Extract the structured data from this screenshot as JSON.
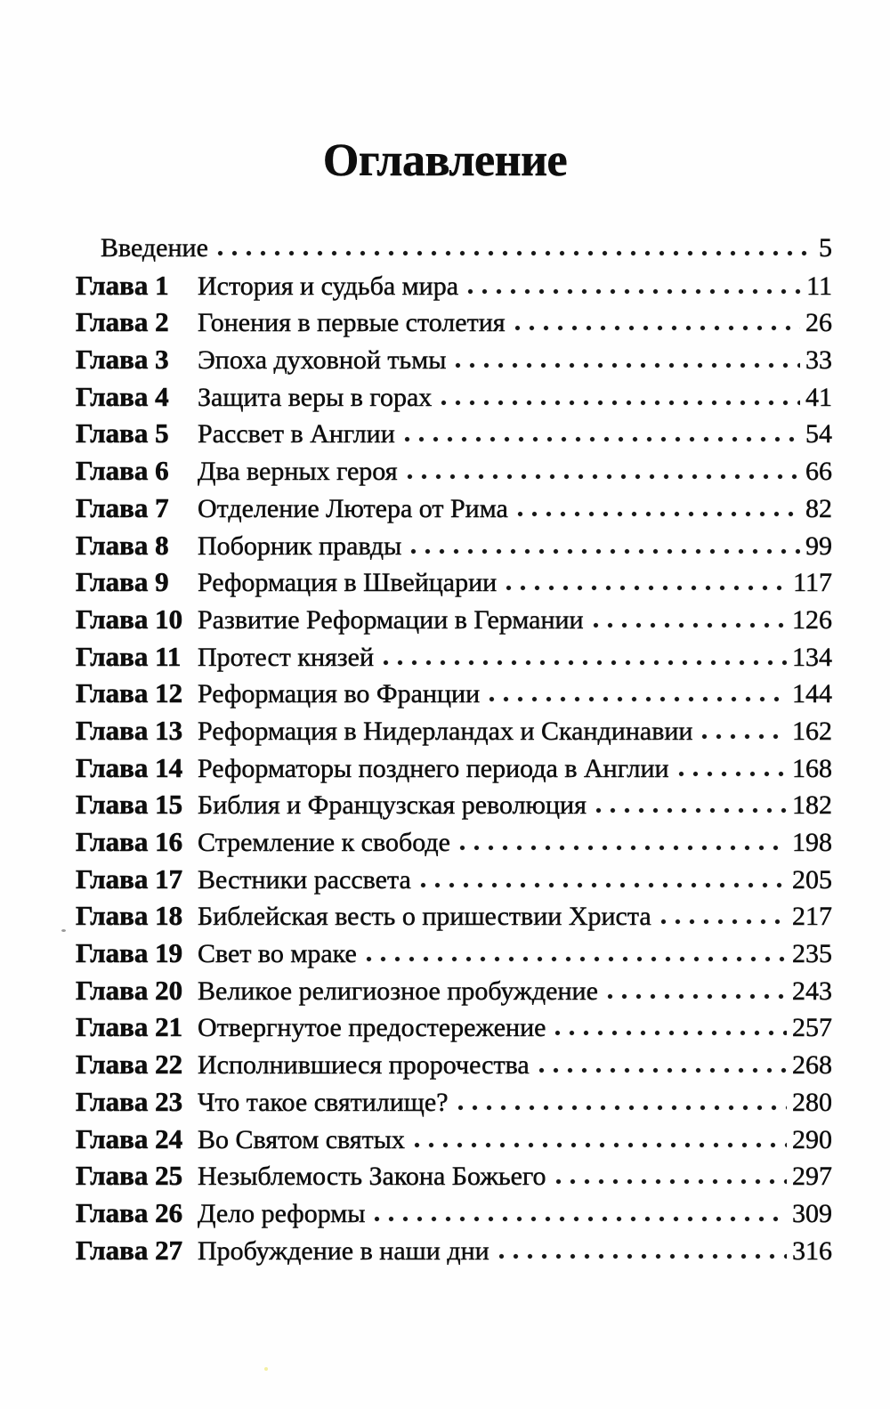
{
  "page": {
    "title": "Оглавление"
  },
  "toc": {
    "entries": [
      {
        "label": "",
        "title": "Введение",
        "page": "5"
      },
      {
        "label": "Глава 1",
        "title": "История и судьба мира",
        "page": "11"
      },
      {
        "label": "Глава 2",
        "title": "Гонения в первые столетия",
        "page": "26"
      },
      {
        "label": "Глава 3",
        "title": "Эпоха духовной тьмы",
        "page": "33"
      },
      {
        "label": "Глава 4",
        "title": "Защита веры в горах",
        "page": "41"
      },
      {
        "label": "Глава 5",
        "title": "Рассвет в Англии",
        "page": "54"
      },
      {
        "label": "Глава 6",
        "title": "Два верных героя",
        "page": "66"
      },
      {
        "label": "Глава 7",
        "title": "Отделение Лютера от Рима",
        "page": "82"
      },
      {
        "label": "Глава 8",
        "title": "Поборник правды",
        "page": "99"
      },
      {
        "label": "Глава 9",
        "title": "Реформация в Швейцарии",
        "page": "117"
      },
      {
        "label": "Глава 10",
        "title": "Развитие Реформации в Германии",
        "page": "126"
      },
      {
        "label": "Глава 11",
        "title": "Протест князей",
        "page": "134"
      },
      {
        "label": "Глава 12",
        "title": "Реформация во Франции",
        "page": "144"
      },
      {
        "label": "Глава 13",
        "title": "Реформация в Нидерландах и Скандинавии",
        "page": "162"
      },
      {
        "label": "Глава 14",
        "title": "Реформаторы позднего периода в Англии",
        "page": "168"
      },
      {
        "label": "Глава 15",
        "title": "Библия и Французская революция",
        "page": "182"
      },
      {
        "label": "Глава 16",
        "title": "Стремление к свободе",
        "page": "198"
      },
      {
        "label": "Глава 17",
        "title": "Вестники рассвета",
        "page": "205"
      },
      {
        "label": "Глава 18",
        "title": "Библейская весть о пришествии Христа",
        "page": "217"
      },
      {
        "label": "Глава 19",
        "title": "Свет во мраке",
        "page": "235"
      },
      {
        "label": "Глава 20",
        "title": "Великое религиозное пробуждение",
        "page": "243"
      },
      {
        "label": "Глава 21",
        "title": "Отвергнутое предостережение",
        "page": "257"
      },
      {
        "label": "Глава 22",
        "title": "Исполнившиеся пророчества",
        "page": "268"
      },
      {
        "label": "Глава 23",
        "title": "Что такое святилище?",
        "page": "280"
      },
      {
        "label": "Глава 24",
        "title": "Во Святом святых",
        "page": "290"
      },
      {
        "label": "Глава 25",
        "title": "Незыблемость Закона Божьего",
        "page": "297"
      },
      {
        "label": "Глава 26",
        "title": "Дело реформы",
        "page": "309"
      },
      {
        "label": "Глава 27",
        "title": "Пробуждение в наши дни",
        "page": "316"
      }
    ]
  }
}
